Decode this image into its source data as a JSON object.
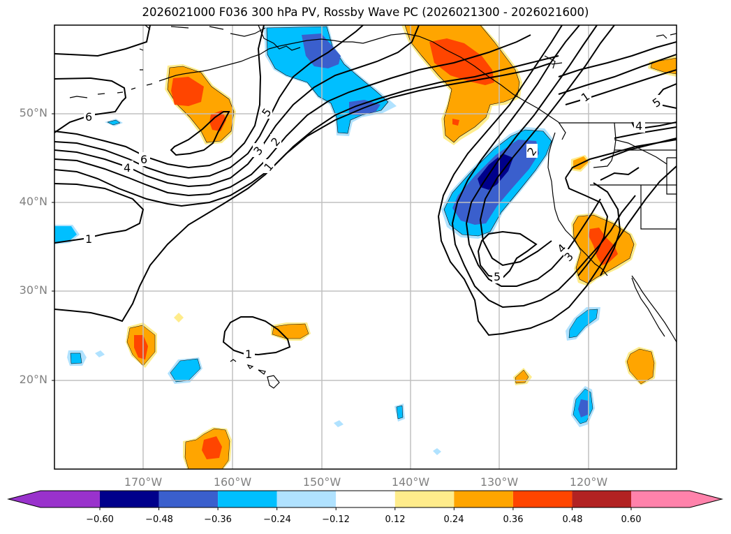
{
  "title": "2026021000 F036 300 hPa PV, Rossby Wave PC (2026021300 - 2026021600)",
  "map": {
    "projection": "lat-lon",
    "latitude_labels": [
      "50°N",
      "40°N",
      "30°N",
      "20°N"
    ],
    "longitude_labels": [
      "170°W",
      "160°W",
      "150°W",
      "140°W",
      "130°W",
      "120°W"
    ],
    "contour_labels": [
      "6",
      "6",
      "4",
      "5",
      "3",
      "2",
      "1",
      "1",
      "1",
      "2",
      "4",
      "5",
      "5",
      "4",
      "3"
    ],
    "gridline_color": "#c0c0c0",
    "coastline_color": "#000000"
  },
  "colorbar": {
    "ticks": [
      "−0.60",
      "−0.48",
      "−0.36",
      "−0.24",
      "−0.12",
      "0.12",
      "0.24",
      "0.36",
      "0.48",
      "0.60"
    ],
    "colors": [
      "#9932cc",
      "#00008b",
      "#3a5fcd",
      "#00bfff",
      "#b0e2ff",
      "#ffffff",
      "#ffec8b",
      "#ffa500",
      "#ff4500",
      "#b22222",
      "#ff82ab"
    ],
    "extend": "both"
  },
  "legend": {
    "fill_variable": "Rossby Wave PC",
    "contour_variable": "300 hPa PV"
  }
}
